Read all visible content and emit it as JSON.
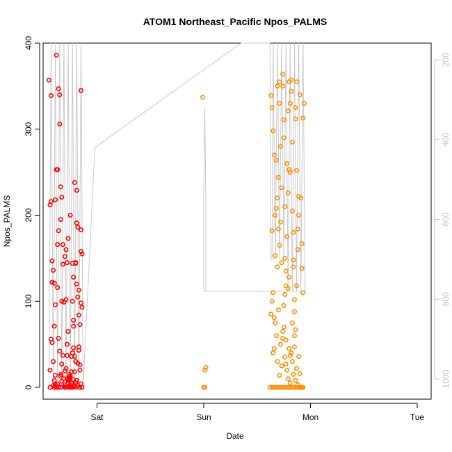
{
  "chart_data": {
    "type": "scatter",
    "title": "ATOM1 Northeast_Pacific Npos_PALMS",
    "xlabel": "Date",
    "ylabel": "Npos_PALMS",
    "x_ticks": [
      "Sat",
      "Sun",
      "Mon",
      "Tue"
    ],
    "y_ticks": [
      "0",
      "100",
      "200",
      "300",
      "400"
    ],
    "ylim": [
      0,
      400
    ],
    "y2_ticks": [
      "200",
      "400",
      "600",
      "800",
      "1000"
    ],
    "y2_reversed": true,
    "y2_range": [
      150,
      1020
    ],
    "grid": false,
    "colors": {
      "red": "#ff0000",
      "orange": "#ff8c00",
      "profile": "#c8c8c8",
      "axis": "#000000",
      "axis2": "#bfbfbf"
    },
    "series": [
      {
        "color": "red",
        "points": [
          [
            -0.45,
            357
          ],
          [
            -0.44,
            212
          ],
          [
            -0.43,
            216
          ],
          [
            -0.43,
            339
          ],
          [
            -0.42,
            147
          ],
          [
            -0.42,
            122
          ],
          [
            -0.41,
            136
          ],
          [
            -0.41,
            2
          ],
          [
            -0.4,
            0
          ],
          [
            -0.4,
            121
          ],
          [
            -0.39,
            218
          ],
          [
            -0.39,
            96
          ],
          [
            -0.38,
            253
          ],
          [
            -0.38,
            386
          ],
          [
            -0.37,
            253
          ],
          [
            -0.37,
            166
          ],
          [
            -0.36,
            347
          ],
          [
            -0.36,
            182
          ],
          [
            -0.35,
            340
          ],
          [
            -0.35,
            306
          ],
          [
            -0.34,
            233
          ],
          [
            -0.34,
            195
          ],
          [
            -0.33,
            221
          ],
          [
            -0.33,
            100
          ],
          [
            -0.32,
            166
          ],
          [
            -0.32,
            143
          ],
          [
            -0.31,
            99
          ],
          [
            -0.31,
            1
          ],
          [
            -0.3,
            0
          ],
          [
            -0.3,
            152
          ],
          [
            -0.29,
            102
          ],
          [
            -0.29,
            160
          ],
          [
            -0.28,
            145
          ],
          [
            -0.28,
            37
          ],
          [
            -0.27,
            173
          ],
          [
            -0.27,
            65
          ],
          [
            -0.26,
            10
          ],
          [
            -0.26,
            15
          ],
          [
            -0.25,
            200
          ],
          [
            -0.25,
            0
          ],
          [
            -0.24,
            5
          ],
          [
            -0.24,
            36
          ],
          [
            -0.23,
            144
          ],
          [
            -0.23,
            100
          ],
          [
            -0.22,
            128
          ],
          [
            -0.22,
            71
          ],
          [
            -0.21,
            238
          ],
          [
            -0.21,
            1
          ],
          [
            -0.2,
            145
          ],
          [
            -0.2,
            144
          ],
          [
            -0.19,
            191
          ],
          [
            -0.19,
            229
          ],
          [
            -0.18,
            186
          ],
          [
            -0.18,
            105
          ],
          [
            -0.17,
            84
          ],
          [
            -0.17,
            43
          ],
          [
            -0.16,
            20
          ],
          [
            -0.16,
            0
          ],
          [
            -0.15,
            345
          ],
          [
            -0.15,
            158
          ],
          [
            -0.15,
            183
          ],
          [
            -0.15,
            98
          ],
          [
            -0.14,
            155
          ],
          [
            -0.14,
            93
          ],
          [
            -0.44,
            20
          ],
          [
            -0.43,
            56
          ],
          [
            -0.42,
            52
          ],
          [
            -0.41,
            30
          ],
          [
            -0.4,
            8
          ],
          [
            -0.39,
            14
          ],
          [
            -0.38,
            0
          ],
          [
            -0.37,
            4
          ],
          [
            -0.36,
            0
          ],
          [
            -0.35,
            42
          ],
          [
            -0.34,
            15
          ],
          [
            -0.33,
            27
          ],
          [
            -0.32,
            37
          ],
          [
            -0.31,
            10
          ],
          [
            -0.3,
            3
          ],
          [
            -0.29,
            22
          ],
          [
            -0.28,
            50
          ],
          [
            -0.27,
            5
          ],
          [
            -0.26,
            0
          ],
          [
            -0.25,
            13
          ],
          [
            -0.24,
            18
          ],
          [
            -0.23,
            40
          ],
          [
            -0.22,
            46
          ],
          [
            -0.21,
            36
          ],
          [
            -0.2,
            30
          ],
          [
            -0.19,
            8
          ],
          [
            -0.18,
            2
          ],
          [
            -0.17,
            47
          ],
          [
            -0.16,
            26
          ],
          [
            -0.15,
            4
          ],
          [
            -0.14,
            0
          ],
          [
            -0.44,
            0
          ],
          [
            -0.39,
            3
          ],
          [
            -0.34,
            0
          ],
          [
            -0.29,
            0
          ],
          [
            -0.24,
            1
          ],
          [
            -0.19,
            0
          ],
          [
            -0.34,
            13
          ],
          [
            -0.33,
            7
          ],
          [
            -0.3,
            19
          ],
          [
            -0.28,
            10
          ],
          [
            -0.27,
            8
          ],
          [
            -0.26,
            12
          ],
          [
            -0.25,
            3
          ],
          [
            -0.23,
            0
          ],
          [
            -0.22,
            9
          ],
          [
            -0.21,
            18
          ],
          [
            -0.2,
            6
          ],
          [
            -0.18,
            28
          ],
          [
            -0.16,
            73
          ],
          [
            -0.17,
            113
          ],
          [
            -0.19,
            120
          ],
          [
            -0.22,
            78
          ],
          [
            -0.37,
            116
          ],
          [
            -0.4,
            71
          ],
          [
            -0.36,
            57
          ]
        ]
      },
      {
        "color": "orange",
        "points": [
          [
            0.99,
            337
          ],
          [
            1.0,
            0
          ],
          [
            1.01,
            20
          ],
          [
            1.02,
            23
          ],
          [
            1.01,
            0
          ],
          [
            1.63,
            339
          ],
          [
            1.64,
            325
          ],
          [
            1.64,
            182
          ],
          [
            1.65,
            298
          ],
          [
            1.65,
            110
          ],
          [
            1.66,
            270
          ],
          [
            1.66,
            81
          ],
          [
            1.67,
            153
          ],
          [
            1.67,
            200
          ],
          [
            1.68,
            208
          ],
          [
            1.68,
            264
          ],
          [
            1.69,
            350
          ],
          [
            1.69,
            220
          ],
          [
            1.7,
            184
          ],
          [
            1.7,
            244
          ],
          [
            1.71,
            355
          ],
          [
            1.71,
            330
          ],
          [
            1.72,
            280
          ],
          [
            1.72,
            192
          ],
          [
            1.73,
            145
          ],
          [
            1.73,
            232
          ],
          [
            1.74,
            364
          ],
          [
            1.74,
            350
          ],
          [
            1.75,
            311
          ],
          [
            1.75,
            290
          ],
          [
            1.76,
            210
          ],
          [
            1.76,
            150
          ],
          [
            1.77,
            135
          ],
          [
            1.77,
            118
          ],
          [
            1.78,
            175
          ],
          [
            1.78,
            260
          ],
          [
            1.79,
            321
          ],
          [
            1.79,
            226
          ],
          [
            1.8,
            355
          ],
          [
            1.8,
            253
          ],
          [
            1.81,
            250
          ],
          [
            1.81,
            330
          ],
          [
            1.82,
            357
          ],
          [
            1.82,
            344
          ],
          [
            1.83,
            285
          ],
          [
            1.83,
            205
          ],
          [
            1.84,
            180
          ],
          [
            1.84,
            140
          ],
          [
            1.85,
            102
          ],
          [
            1.85,
            88
          ],
          [
            1.86,
            325
          ],
          [
            1.86,
            312
          ],
          [
            1.87,
            355
          ],
          [
            1.87,
            252
          ],
          [
            1.88,
            160
          ],
          [
            1.88,
            184
          ],
          [
            1.89,
            200
          ],
          [
            1.89,
            222
          ],
          [
            1.9,
            340
          ],
          [
            1.91,
            220
          ],
          [
            1.92,
            167
          ],
          [
            1.92,
            138
          ],
          [
            1.93,
            110
          ],
          [
            1.93,
            313
          ],
          [
            1.94,
            330
          ],
          [
            1.63,
            85
          ],
          [
            1.64,
            100
          ],
          [
            1.65,
            40
          ],
          [
            1.66,
            45
          ],
          [
            1.67,
            75
          ],
          [
            1.68,
            60
          ],
          [
            1.69,
            30
          ],
          [
            1.7,
            90
          ],
          [
            1.71,
            14
          ],
          [
            1.72,
            50
          ],
          [
            1.73,
            25
          ],
          [
            1.74,
            65
          ],
          [
            1.75,
            70
          ],
          [
            1.76,
            35
          ],
          [
            1.77,
            55
          ],
          [
            1.78,
            20
          ],
          [
            1.79,
            10
          ],
          [
            1.8,
            45
          ],
          [
            1.81,
            5
          ],
          [
            1.82,
            40
          ],
          [
            1.83,
            30
          ],
          [
            1.84,
            15
          ],
          [
            1.85,
            60
          ],
          [
            1.86,
            8
          ],
          [
            1.87,
            22
          ],
          [
            1.88,
            3
          ],
          [
            1.89,
            36
          ],
          [
            1.9,
            16
          ],
          [
            1.91,
            0
          ],
          [
            1.92,
            0
          ],
          [
            1.62,
            0
          ],
          [
            1.64,
            0
          ],
          [
            1.66,
            0
          ],
          [
            1.68,
            0
          ],
          [
            1.7,
            0
          ],
          [
            1.72,
            0
          ],
          [
            1.74,
            0
          ],
          [
            1.76,
            0
          ],
          [
            1.78,
            0
          ],
          [
            1.8,
            0
          ],
          [
            1.82,
            0
          ],
          [
            1.84,
            0
          ],
          [
            1.86,
            0
          ],
          [
            1.88,
            0
          ],
          [
            1.9,
            0
          ],
          [
            1.93,
            0
          ],
          [
            1.71,
            165
          ],
          [
            1.75,
            95
          ],
          [
            1.79,
            115
          ],
          [
            1.83,
            75
          ],
          [
            1.77,
            27
          ],
          [
            1.81,
            37
          ],
          [
            1.85,
            47
          ],
          [
            1.74,
            57
          ],
          [
            1.86,
            67
          ],
          [
            1.76,
            108
          ],
          [
            1.8,
            128
          ],
          [
            1.84,
            148
          ],
          [
            1.87,
            118
          ],
          [
            1.69,
            140
          ]
        ]
      }
    ],
    "profile_line": {
      "color": "profile",
      "points": [
        [
          -0.45,
          1020
        ],
        [
          -0.43,
          150
        ],
        [
          -0.41,
          1020
        ],
        [
          -0.39,
          150
        ],
        [
          -0.37,
          1020
        ],
        [
          -0.35,
          150
        ],
        [
          -0.33,
          1020
        ],
        [
          -0.31,
          150
        ],
        [
          -0.29,
          1020
        ],
        [
          -0.27,
          150
        ],
        [
          -0.25,
          1020
        ],
        [
          -0.23,
          150
        ],
        [
          -0.21,
          1020
        ],
        [
          -0.19,
          150
        ],
        [
          -0.17,
          1020
        ],
        [
          -0.15,
          150
        ],
        [
          -0.13,
          1020
        ],
        [
          -0.02,
          420
        ],
        [
          1.35,
          150
        ],
        [
          1.62,
          150
        ],
        [
          1.63,
          700
        ],
        [
          1.64,
          700
        ],
        [
          1.65,
          150
        ],
        [
          1.67,
          700
        ],
        [
          1.69,
          150
        ],
        [
          1.71,
          700
        ],
        [
          1.73,
          150
        ],
        [
          1.75,
          700
        ],
        [
          1.77,
          150
        ],
        [
          1.79,
          780
        ],
        [
          1.81,
          150
        ],
        [
          1.83,
          780
        ],
        [
          1.85,
          150
        ],
        [
          1.87,
          780
        ],
        [
          1.89,
          150
        ],
        [
          1.91,
          780
        ],
        [
          1.93,
          150
        ],
        [
          1.95,
          780
        ],
        [
          1.96,
          780
        ],
        [
          1.0,
          780
        ],
        [
          1.0,
          560
        ],
        [
          1.01,
          320
        ],
        [
          1.02,
          560
        ],
        [
          1.02,
          780
        ]
      ]
    }
  }
}
